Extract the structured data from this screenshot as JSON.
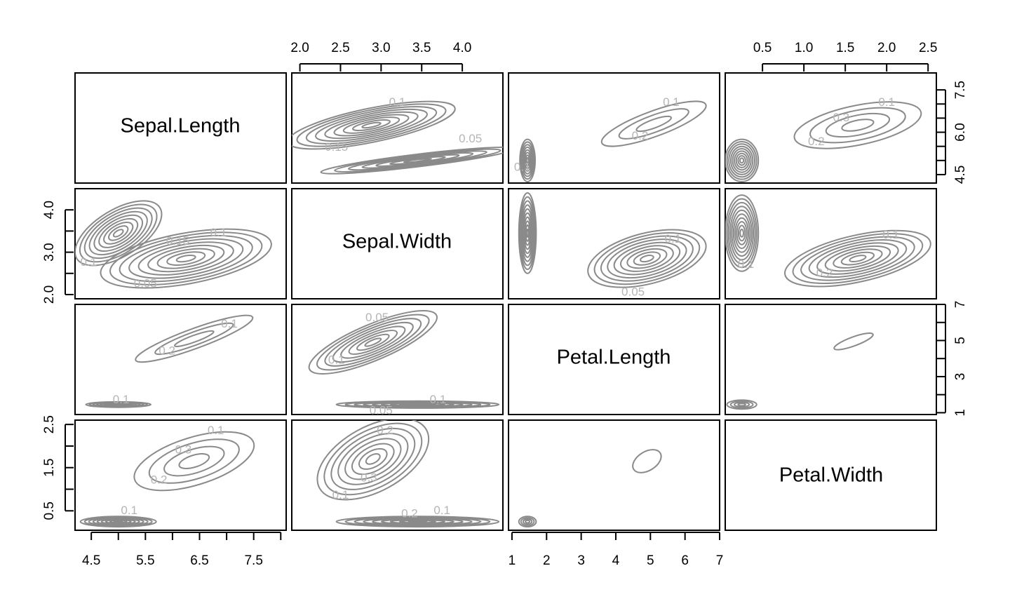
{
  "chart_data": {
    "type": "pairs-contour",
    "variables": [
      "Sepal.Length",
      "Sepal.Width",
      "Petal.Length",
      "Petal.Width"
    ],
    "colors": {
      "contour": "#8a8a8a",
      "contour_label": "#b5b5b5",
      "frame": "#000000",
      "text": "#000000"
    },
    "axes": {
      "Sepal.Length": {
        "range": [
          4.2,
          8.1
        ],
        "ticks": [
          4.5,
          5.0,
          5.5,
          6.0,
          6.5,
          7.0,
          7.5,
          8.0
        ],
        "tick_labels": [
          "4.5",
          "5.5",
          "6.5",
          "7.5"
        ],
        "labeled_ticks": [
          4.5,
          5.5,
          6.5,
          7.5
        ],
        "y_ticks": [
          4.5,
          5.0,
          5.5,
          6.0,
          6.5,
          7.0,
          7.5
        ],
        "y_tick_labels": [
          "4.5",
          "6.0",
          "7.5"
        ],
        "y_labeled_ticks": [
          4.5,
          6.0,
          7.5
        ]
      },
      "Sepal.Width": {
        "range": [
          1.9,
          4.5
        ],
        "ticks": [
          2.0,
          2.5,
          3.0,
          3.5,
          4.0
        ],
        "tick_labels": [
          "2.0",
          "2.5",
          "3.0",
          "3.5",
          "4.0"
        ],
        "y_ticks": [
          2.0,
          2.5,
          3.0,
          3.5,
          4.0
        ],
        "y_tick_labels": [
          "2.0",
          "3.0",
          "4.0"
        ],
        "y_labeled_ticks": [
          2.0,
          3.0,
          4.0
        ]
      },
      "Petal.Length": {
        "range": [
          0.9,
          7.0
        ],
        "ticks": [
          1,
          2,
          3,
          4,
          5,
          6,
          7
        ],
        "tick_labels": [
          "1",
          "2",
          "3",
          "4",
          "5",
          "6",
          "7"
        ],
        "y_ticks": [
          1,
          2,
          3,
          4,
          5,
          6,
          7
        ],
        "y_tick_labels": [
          "1",
          "3",
          "5",
          "7"
        ],
        "y_labeled_ticks": [
          1,
          3,
          5,
          7
        ]
      },
      "Petal.Width": {
        "range": [
          0.05,
          2.6
        ],
        "ticks": [
          0.5,
          1.0,
          1.5,
          2.0,
          2.5
        ],
        "tick_labels": [
          "0.5",
          "1.0",
          "1.5",
          "2.0",
          "2.5"
        ],
        "y_ticks": [
          0.5,
          1.0,
          1.5,
          2.0,
          2.5
        ],
        "y_tick_labels": [
          "0.5",
          "1.5",
          "2.5"
        ],
        "y_labeled_ticks": [
          0.5,
          1.5,
          2.5
        ]
      }
    },
    "axis_sides": {
      "bottom": [
        "Sepal.Length",
        null,
        "Petal.Length",
        null
      ],
      "top": [
        null,
        "Sepal.Width",
        null,
        "Petal.Width"
      ],
      "left": [
        null,
        "Sepal.Width",
        null,
        "Petal.Width"
      ],
      "right": [
        "Sepal.Length",
        null,
        "Petal.Length",
        null
      ]
    },
    "panels": [
      {
        "row": 0,
        "col": 1,
        "x": "Sepal.Width",
        "y": "Sepal.Length",
        "ellipses": [
          {
            "cx": 2.88,
            "cy": 6.25,
            "rx": 1.05,
            "ry": 0.6,
            "angle": 0.2,
            "levels": 9
          },
          {
            "cx": 3.45,
            "cy": 5.0,
            "rx": 1.2,
            "ry": 0.22,
            "angle": 0.12,
            "levels": 7
          }
        ],
        "labels": [
          {
            "text": "0.1",
            "x": 3.2,
            "y": 7.05
          },
          {
            "text": "0.15",
            "x": 2.45,
            "y": 5.45
          },
          {
            "text": "0.05",
            "x": 4.1,
            "y": 5.75
          }
        ]
      },
      {
        "row": 0,
        "col": 2,
        "x": "Petal.Length",
        "y": "Sepal.Length",
        "ellipses": [
          {
            "cx": 5.1,
            "cy": 6.3,
            "rx": 1.6,
            "ry": 0.45,
            "angle": 0.35,
            "levels": 3
          },
          {
            "cx": 1.45,
            "cy": 5.0,
            "rx": 0.22,
            "ry": 0.75,
            "angle": 0,
            "levels": 8
          }
        ],
        "labels": [
          {
            "text": "0.1",
            "x": 5.6,
            "y": 7.05
          },
          {
            "text": "0.2",
            "x": 4.7,
            "y": 5.85
          },
          {
            "text": "0.1",
            "x": 1.3,
            "y": 4.75
          }
        ]
      },
      {
        "row": 0,
        "col": 3,
        "x": "Petal.Width",
        "y": "Sepal.Length",
        "ellipses": [
          {
            "cx": 1.65,
            "cy": 6.25,
            "rx": 0.78,
            "ry": 0.7,
            "angle": 0.2,
            "levels": 4
          },
          {
            "cx": 0.25,
            "cy": 5.0,
            "rx": 0.2,
            "ry": 0.75,
            "angle": 0,
            "levels": 9
          }
        ],
        "labels": [
          {
            "text": "0.1",
            "x": 2.0,
            "y": 7.05
          },
          {
            "text": "0.3",
            "x": 1.45,
            "y": 6.5
          },
          {
            "text": "0.2",
            "x": 1.15,
            "y": 5.65
          }
        ]
      },
      {
        "row": 1,
        "col": 0,
        "x": "Sepal.Length",
        "y": "Sepal.Width",
        "ellipses": [
          {
            "cx": 5.0,
            "cy": 3.45,
            "rx": 0.9,
            "ry": 0.55,
            "angle": 0.55,
            "levels": 9
          },
          {
            "cx": 6.25,
            "cy": 2.85,
            "rx": 1.6,
            "ry": 0.6,
            "angle": 0.18,
            "levels": 9
          }
        ],
        "labels": [
          {
            "text": "0.1",
            "x": 4.45,
            "y": 2.75
          },
          {
            "text": "0.15",
            "x": 6.1,
            "y": 3.25
          },
          {
            "text": "0.1",
            "x": 6.85,
            "y": 3.45
          },
          {
            "text": "0.05",
            "x": 5.5,
            "y": 2.25
          }
        ]
      },
      {
        "row": 1,
        "col": 2,
        "x": "Petal.Length",
        "y": "Sepal.Width",
        "ellipses": [
          {
            "cx": 1.45,
            "cy": 3.45,
            "rx": 0.25,
            "ry": 0.95,
            "angle": 0,
            "levels": 10
          },
          {
            "cx": 4.9,
            "cy": 2.85,
            "rx": 1.75,
            "ry": 0.6,
            "angle": 0.25,
            "levels": 9
          }
        ],
        "labels": [
          {
            "text": "0.1",
            "x": 5.65,
            "y": 3.3
          },
          {
            "text": "0.05",
            "x": 4.5,
            "y": 2.05
          }
        ]
      },
      {
        "row": 1,
        "col": 3,
        "x": "Petal.Width",
        "y": "Sepal.Width",
        "ellipses": [
          {
            "cx": 0.25,
            "cy": 3.45,
            "rx": 0.2,
            "ry": 0.9,
            "angle": 0,
            "levels": 10
          },
          {
            "cx": 1.65,
            "cy": 2.85,
            "rx": 0.9,
            "ry": 0.55,
            "angle": 0.22,
            "levels": 9
          }
        ],
        "labels": [
          {
            "text": "0.1",
            "x": 2.05,
            "y": 3.4
          },
          {
            "text": "0.2",
            "x": 1.25,
            "y": 2.5
          },
          {
            "text": "0.1",
            "x": 0.3,
            "y": 2.7
          }
        ]
      },
      {
        "row": 2,
        "col": 0,
        "x": "Sepal.Length",
        "y": "Petal.Length",
        "ellipses": [
          {
            "cx": 6.4,
            "cy": 5.1,
            "rx": 1.15,
            "ry": 0.55,
            "angle": 0.35,
            "levels": 3
          },
          {
            "cx": 5.0,
            "cy": 1.45,
            "rx": 0.6,
            "ry": 0.15,
            "angle": 0,
            "levels": 9
          }
        ],
        "labels": [
          {
            "text": "0.1",
            "x": 7.05,
            "y": 5.9
          },
          {
            "text": "0.2",
            "x": 5.9,
            "y": 4.4
          },
          {
            "text": "0.1",
            "x": 5.05,
            "y": 1.7
          }
        ]
      },
      {
        "row": 2,
        "col": 1,
        "x": "Sepal.Width",
        "y": "Petal.Length",
        "ellipses": [
          {
            "cx": 2.9,
            "cy": 4.9,
            "rx": 0.85,
            "ry": 1.0,
            "angle": 0.4,
            "levels": 8
          },
          {
            "cx": 3.45,
            "cy": 1.45,
            "rx": 1.0,
            "ry": 0.2,
            "angle": 0,
            "levels": 9
          }
        ],
        "labels": [
          {
            "text": "0.05",
            "x": 2.95,
            "y": 6.25
          },
          {
            "text": "0.1",
            "x": 2.45,
            "y": 3.9
          },
          {
            "text": "0.1",
            "x": 3.7,
            "y": 1.7
          },
          {
            "text": "0.05",
            "x": 3.0,
            "y": 1.1
          }
        ]
      },
      {
        "row": 2,
        "col": 3,
        "x": "Petal.Width",
        "y": "Petal.Length",
        "ellipses": [
          {
            "cx": 1.6,
            "cy": 4.95,
            "rx": 0.25,
            "ry": 0.25,
            "angle": 0.35,
            "levels": 1
          },
          {
            "cx": 0.25,
            "cy": 1.45,
            "rx": 0.18,
            "ry": 0.25,
            "angle": 0,
            "levels": 4
          }
        ],
        "labels": []
      },
      {
        "row": 3,
        "col": 0,
        "x": "Sepal.Length",
        "y": "Petal.Width",
        "ellipses": [
          {
            "cx": 6.4,
            "cy": 1.65,
            "rx": 1.15,
            "ry": 0.55,
            "angle": 0.3,
            "levels": 4
          },
          {
            "cx": 5.0,
            "cy": 0.25,
            "rx": 0.7,
            "ry": 0.12,
            "angle": 0,
            "levels": 9
          }
        ],
        "labels": [
          {
            "text": "0.1",
            "x": 6.8,
            "y": 2.35
          },
          {
            "text": "0.3",
            "x": 6.2,
            "y": 1.9
          },
          {
            "text": "0.2",
            "x": 5.75,
            "y": 1.2
          },
          {
            "text": "0.1",
            "x": 5.2,
            "y": 0.5
          }
        ]
      },
      {
        "row": 3,
        "col": 1,
        "x": "Sepal.Width",
        "y": "Petal.Width",
        "ellipses": [
          {
            "cx": 2.9,
            "cy": 1.7,
            "rx": 0.75,
            "ry": 0.75,
            "angle": 0.5,
            "levels": 8
          },
          {
            "cx": 3.45,
            "cy": 0.25,
            "rx": 1.0,
            "ry": 0.12,
            "angle": 0,
            "levels": 9
          }
        ],
        "labels": [
          {
            "text": "0.2",
            "x": 3.05,
            "y": 2.35
          },
          {
            "text": "0.3",
            "x": 2.85,
            "y": 1.25
          },
          {
            "text": "0.1",
            "x": 2.5,
            "y": 0.85
          },
          {
            "text": "0.2",
            "x": 3.35,
            "y": 0.42
          },
          {
            "text": "0.1",
            "x": 3.75,
            "y": 0.5
          }
        ]
      },
      {
        "row": 3,
        "col": 2,
        "x": "Petal.Length",
        "y": "Petal.Width",
        "ellipses": [
          {
            "cx": 4.9,
            "cy": 1.65,
            "rx": 0.45,
            "ry": 0.22,
            "angle": 0.55,
            "levels": 1
          },
          {
            "cx": 1.45,
            "cy": 0.25,
            "rx": 0.25,
            "ry": 0.12,
            "angle": 0,
            "levels": 4
          }
        ],
        "labels": []
      }
    ]
  }
}
